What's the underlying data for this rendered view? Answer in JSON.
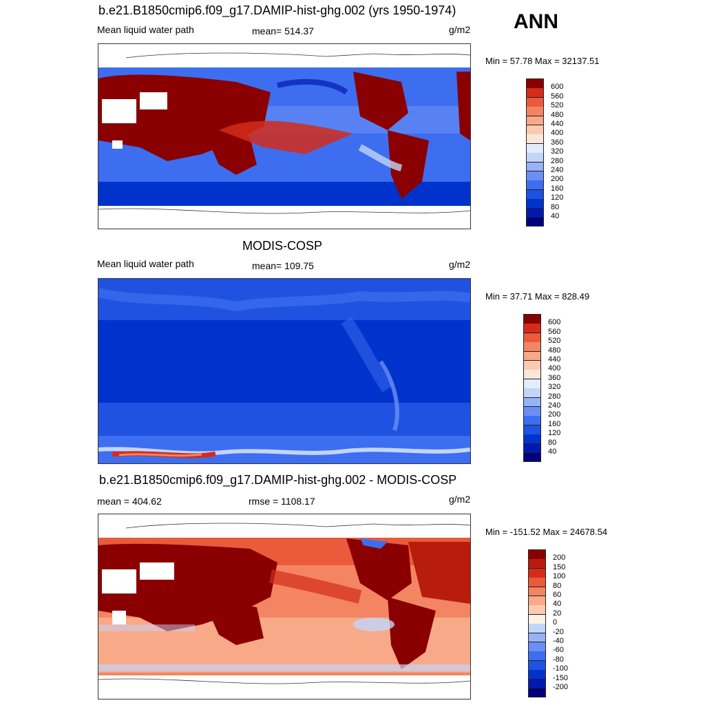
{
  "season": "ANN",
  "panels": [
    {
      "title": "b.e21.B1850cmip6.f09_g17.DAMIP-hist-ghg.002 (yrs 1950-1974)",
      "left_label": "Mean liquid water path",
      "center_label": "mean= 514.37",
      "units": "g/m2",
      "minmax": "Min =  57.78 Max = 32137.51",
      "kind": "model"
    },
    {
      "title": "MODIS-COSP",
      "left_label": "Mean liquid water path",
      "center_label": "mean= 109.75",
      "units": "g/m2",
      "minmax": "Min =  37.71 Max = 828.49",
      "kind": "obs"
    },
    {
      "title": "b.e21.B1850cmip6.f09_g17.DAMIP-hist-ghg.002 - MODIS-COSP",
      "left_label": "mean = 404.62",
      "center_label": "rmse = 1108.17",
      "units": "g/m2",
      "minmax": "Min = -151.52 Max = 24678.54",
      "kind": "diff"
    }
  ],
  "chart_data": [
    {
      "type": "heatmap",
      "title": "b.e21.B1850cmip6.f09_g17.DAMIP-hist-ghg.002 (yrs 1950-1974)",
      "variable": "Mean liquid water path",
      "units": "g/m2",
      "mean": 514.37,
      "min": 57.78,
      "max": 32137.51,
      "colorbar_levels": [
        40,
        80,
        120,
        160,
        200,
        240,
        280,
        320,
        360,
        400,
        440,
        480,
        520,
        560,
        600
      ],
      "colorbar_colors": [
        "#00007f",
        "#0019b3",
        "#0033cc",
        "#1f52e0",
        "#3d6ef0",
        "#6b8ff5",
        "#98b2f7",
        "#c3d4f9",
        "#e3ecfb",
        "#fbe7d9",
        "#fbcbb0",
        "#f8a987",
        "#f48562",
        "#ea5a3b",
        "#d42c1a",
        "#8a0000"
      ]
    },
    {
      "type": "heatmap",
      "title": "MODIS-COSP",
      "variable": "Mean liquid water path",
      "units": "g/m2",
      "mean": 109.75,
      "min": 37.71,
      "max": 828.49,
      "colorbar_levels": [
        40,
        80,
        120,
        160,
        200,
        240,
        280,
        320,
        360,
        400,
        440,
        480,
        520,
        560,
        600
      ],
      "colorbar_colors": [
        "#00007f",
        "#0019b3",
        "#0033cc",
        "#1f52e0",
        "#3d6ef0",
        "#6b8ff5",
        "#98b2f7",
        "#c3d4f9",
        "#e3ecfb",
        "#fbe7d9",
        "#fbcbb0",
        "#f8a987",
        "#f48562",
        "#ea5a3b",
        "#d42c1a",
        "#8a0000"
      ]
    },
    {
      "type": "heatmap",
      "title": "b.e21.B1850cmip6.f09_g17.DAMIP-hist-ghg.002 - MODIS-COSP",
      "units": "g/m2",
      "mean": 404.62,
      "rmse": 1108.17,
      "min": -151.52,
      "max": 24678.54,
      "colorbar_levels": [
        -200,
        -150,
        -100,
        -80,
        -60,
        -40,
        -20,
        0,
        20,
        40,
        60,
        80,
        100,
        150,
        200
      ],
      "colorbar_colors": [
        "#00007f",
        "#0019b3",
        "#0033cc",
        "#1f52e0",
        "#3d6ef0",
        "#6b8ff5",
        "#98b2f7",
        "#c3d4f9",
        "#fdf1e8",
        "#fbcbb0",
        "#f8a987",
        "#f48562",
        "#ea5a3b",
        "#d42c1a",
        "#b81c0c",
        "#8a0000"
      ]
    }
  ]
}
